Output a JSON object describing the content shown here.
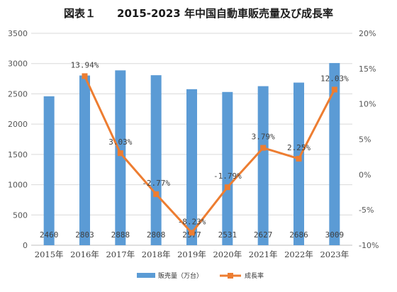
{
  "chart_data": {
    "type": "bar",
    "title": "図表１　　2015-2023 年中国自動車販売量及び成長率",
    "categories": [
      "2015年",
      "2016年",
      "2017年",
      "2018年",
      "2019年",
      "2020年",
      "2021年",
      "2022年",
      "2023年"
    ],
    "series": [
      {
        "name": "販売量（万台）",
        "type": "bar",
        "axis": "left",
        "color": "#5b9bd5",
        "values": [
          2460,
          2803,
          2888,
          2808,
          2577,
          2531,
          2627,
          2686,
          3009
        ],
        "labels": [
          "2460",
          "2803",
          "2888",
          "2808",
          "2577",
          "2531",
          "2627",
          "2686",
          "3009"
        ]
      },
      {
        "name": "成長率",
        "type": "line",
        "axis": "right",
        "color": "#ed7d31",
        "values": [
          null,
          13.94,
          3.03,
          -2.77,
          -8.23,
          -1.79,
          3.79,
          2.25,
          12.03
        ],
        "labels": [
          "",
          "13.94%",
          "3.03%",
          "-2.77%",
          "-8.23%",
          "-1.79%",
          "3.79%",
          "2.25%",
          "12.03%"
        ]
      }
    ],
    "y_left": {
      "ylim": [
        0,
        3500
      ],
      "ticks": [
        0,
        500,
        1000,
        1500,
        2000,
        2500,
        3000,
        3500
      ],
      "tick_labels": [
        "0",
        "500",
        "1000",
        "1500",
        "2000",
        "2500",
        "3000",
        "3500"
      ]
    },
    "y_right": {
      "ylim": [
        -10,
        20
      ],
      "ticks": [
        -10,
        -5,
        0,
        5,
        10,
        15,
        20
      ],
      "tick_labels": [
        "-10%",
        "-5%",
        "0%",
        "5%",
        "10%",
        "15%",
        "20%"
      ]
    },
    "grid": "horizontal",
    "legend": "bottom-center"
  }
}
